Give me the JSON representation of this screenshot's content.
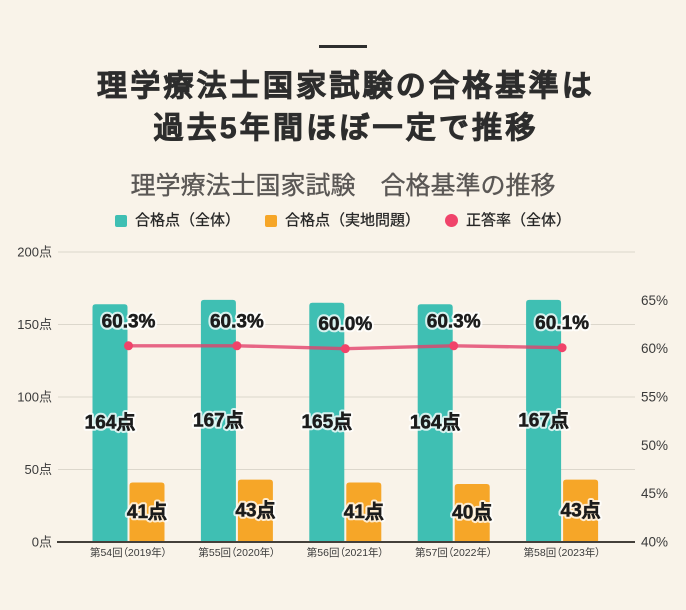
{
  "page": {
    "background_color": "#f9f3e9",
    "divider_color": "#2e2e2e"
  },
  "header": {
    "title_line1": "理学療法士国家試験の合格基準は",
    "title_line2": "過去5年間ほぼ一定で推移",
    "title_color": "#2d2d2d"
  },
  "chart_header": {
    "title": "理学療法士国家試験　合格基準の推移",
    "title_color": "#5a5755"
  },
  "legend": {
    "items": [
      {
        "label": "合格点（全体）",
        "marker": "square",
        "color": "#3fbfb3"
      },
      {
        "label": "合格点（実地問題）",
        "marker": "square",
        "color": "#f6a628"
      },
      {
        "label": "正答率（全体）",
        "marker": "circle",
        "color": "#f0436a"
      }
    ],
    "text_color": "#262626"
  },
  "chart_data": {
    "type": "bar",
    "subtype": "grouped bars with overlay line (combo chart)",
    "title": "理学療法士国家試験　合格基準の推移",
    "categories": [
      "第54回（2019年）",
      "第55回（2020年）",
      "第56回（2021年）",
      "第57回（2022年）",
      "第58回（2023年）"
    ],
    "series": [
      {
        "name": "合格点（全体）",
        "type": "bar",
        "axis": "left",
        "unit": "点",
        "color": "#3fbfb3",
        "values": [
          164,
          167,
          165,
          164,
          167
        ]
      },
      {
        "name": "合格点（実地問題）",
        "type": "bar",
        "axis": "left",
        "unit": "点",
        "color": "#f6a628",
        "values": [
          41,
          43,
          41,
          40,
          43
        ]
      },
      {
        "name": "正答率（全体）",
        "type": "line",
        "axis": "right",
        "unit": "%",
        "color": "#f0436a",
        "values": [
          60.3,
          60.3,
          60.0,
          60.3,
          60.1
        ]
      }
    ],
    "axes": {
      "left": {
        "min": 0,
        "max": 200,
        "ticks": [
          0,
          50,
          100,
          150,
          200
        ],
        "suffix": "点"
      },
      "right": {
        "min": 40,
        "max": 70,
        "ticks": [
          40,
          45,
          50,
          55,
          60,
          65
        ],
        "suffix": "%"
      }
    },
    "grid": true,
    "legend_position": "top",
    "label_color": "#1c1c1c",
    "axis_label_color": "#3a3a3a",
    "grid_color": "#dcd7cc",
    "baseline_color": "#44403a"
  }
}
